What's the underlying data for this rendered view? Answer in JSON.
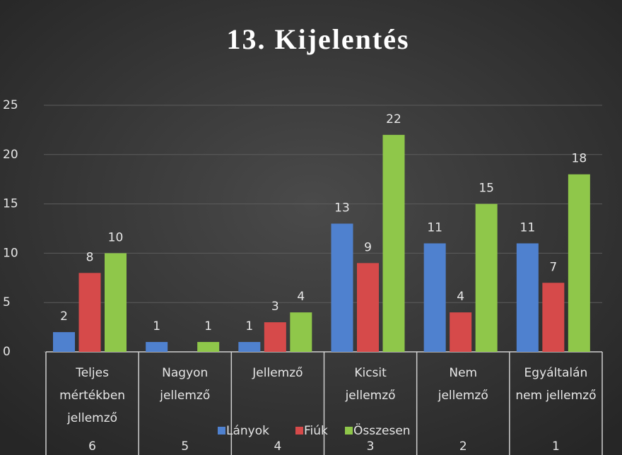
{
  "chart_data": {
    "type": "bar",
    "title": "13. Kijelentés",
    "categories": [
      [
        "Teljes",
        "mértékben",
        "jellemző"
      ],
      [
        "Nagyon",
        "jellemző"
      ],
      [
        "Jellemző"
      ],
      [
        "Kicsit",
        "jellemző"
      ],
      [
        "Nem",
        "jellemző"
      ],
      [
        "Egyáltalán",
        "nem jellemző"
      ]
    ],
    "category_codes": [
      "6",
      "5",
      "4",
      "3",
      "2",
      "1"
    ],
    "series": [
      {
        "name": "Lányok",
        "color": "#4f81cf",
        "values": [
          2,
          1,
          1,
          13,
          11,
          11
        ]
      },
      {
        "name": "Fiúk",
        "color": "#d64a4a",
        "values": [
          8,
          null,
          3,
          9,
          4,
          7
        ]
      },
      {
        "name": "Összesen",
        "color": "#8fc74a",
        "values": [
          10,
          1,
          4,
          22,
          15,
          18
        ]
      }
    ],
    "ylim": [
      0,
      25
    ],
    "yticks": [
      0,
      5,
      10,
      15,
      20,
      25
    ],
    "grid": true,
    "legend": "bottom"
  }
}
